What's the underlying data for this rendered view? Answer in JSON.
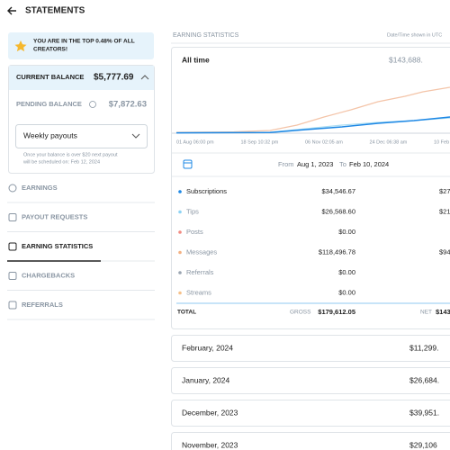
{
  "header": {
    "title": "STATEMENTS"
  },
  "sidebar": {
    "banner": [
      "YOU ARE IN THE TOP 0.48% OF ALL",
      "CREATORS!"
    ],
    "current_balance": {
      "label": "CURRENT BALANCE",
      "value": "$5,777.69"
    },
    "pending_balance": {
      "label": "PENDING BALANCE",
      "value": "$7,872.63"
    },
    "payout_select": "Weekly payouts",
    "payout_note": [
      "Once your balance is over $20 next payout",
      "will be scheduled on: Feb 12, 2024"
    ],
    "nav": [
      "EARNINGS",
      "PAYOUT REQUESTS",
      "EARNING STATISTICS",
      "CHARGEBACKS",
      "REFERRALS"
    ]
  },
  "main": {
    "title": "EARNING STATISTICS",
    "timezone_note": "Date/Time shown in UTC",
    "chart": {
      "period": "All time",
      "total": "$143,688.",
      "x_labels": [
        "01 Aug 06:00 pm",
        "18 Sep 10:32 pm",
        "06 Nov 02:05 am",
        "24 Dec 06:38 am",
        "10 Feb"
      ]
    },
    "range": {
      "from_label": "From",
      "from": "Aug 1, 2023",
      "to_label": "To",
      "to": "Feb 10, 2024"
    },
    "rows": [
      {
        "name": "Subscriptions",
        "color": "#1e88e5",
        "gross": "$34,546.67",
        "net": "$27"
      },
      {
        "name": "Tips",
        "color": "#8fd3f4",
        "gross": "$26,568.60",
        "net": "$21"
      },
      {
        "name": "Posts",
        "color": "#f28b82",
        "gross": "$0.00"
      },
      {
        "name": "Messages",
        "color": "#f4b183",
        "gross": "$118,496.78",
        "net": "$94"
      },
      {
        "name": "Referrals",
        "color": "#9aa5b1",
        "gross": "$0.00"
      },
      {
        "name": "Streams",
        "color": "#f6c28b",
        "gross": "$0.00"
      }
    ],
    "total": {
      "label": "TOTAL",
      "gross_label": "GROSS",
      "gross": "$179,612.05",
      "net_label": "NET",
      "net": "$143"
    },
    "months": [
      {
        "name": "February, 2024",
        "value": "$11,299."
      },
      {
        "name": "January, 2024",
        "value": "$26,684."
      },
      {
        "name": "December, 2023",
        "value": "$39,951."
      },
      {
        "name": "November, 2023",
        "value": "$29,106"
      }
    ]
  }
}
